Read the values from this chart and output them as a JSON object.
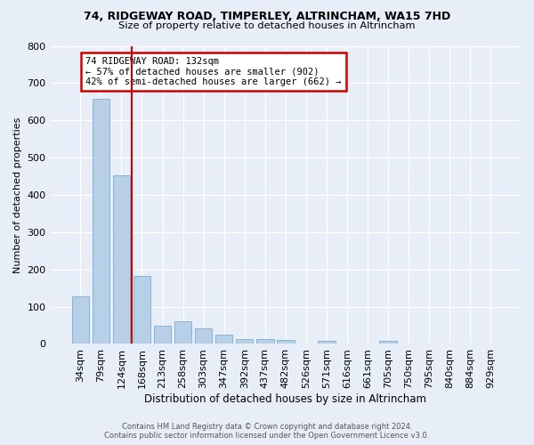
{
  "title": "74, RIDGEWAY ROAD, TIMPERLEY, ALTRINCHAM, WA15 7HD",
  "subtitle": "Size of property relative to detached houses in Altrincham",
  "xlabel": "Distribution of detached houses by size in Altrincham",
  "ylabel": "Number of detached properties",
  "categories": [
    "34sqm",
    "79sqm",
    "124sqm",
    "168sqm",
    "213sqm",
    "258sqm",
    "303sqm",
    "347sqm",
    "392sqm",
    "437sqm",
    "482sqm",
    "526sqm",
    "571sqm",
    "616sqm",
    "661sqm",
    "705sqm",
    "750sqm",
    "795sqm",
    "840sqm",
    "884sqm",
    "929sqm"
  ],
  "values": [
    128,
    658,
    452,
    183,
    50,
    60,
    42,
    25,
    12,
    12,
    10,
    0,
    8,
    0,
    0,
    8,
    0,
    0,
    0,
    0,
    0
  ],
  "bar_color": "#b8cfe8",
  "bar_edge_color": "#7aacd4",
  "line_color": "#cc0000",
  "line_x_index": 2.5,
  "annotation_text": "74 RIDGEWAY ROAD: 132sqm\n← 57% of detached houses are smaller (902)\n42% of semi-detached houses are larger (662) →",
  "annotation_box_color": "#ffffff",
  "annotation_box_edge": "#cc0000",
  "background_color": "#e8eef7",
  "plot_bg_color": "#e8eef7",
  "grid_color": "#ffffff",
  "footer_line1": "Contains HM Land Registry data © Crown copyright and database right 2024.",
  "footer_line2": "Contains public sector information licensed under the Open Government Licence v3.0.",
  "ylim": [
    0,
    800
  ],
  "yticks": [
    0,
    100,
    200,
    300,
    400,
    500,
    600,
    700,
    800
  ]
}
